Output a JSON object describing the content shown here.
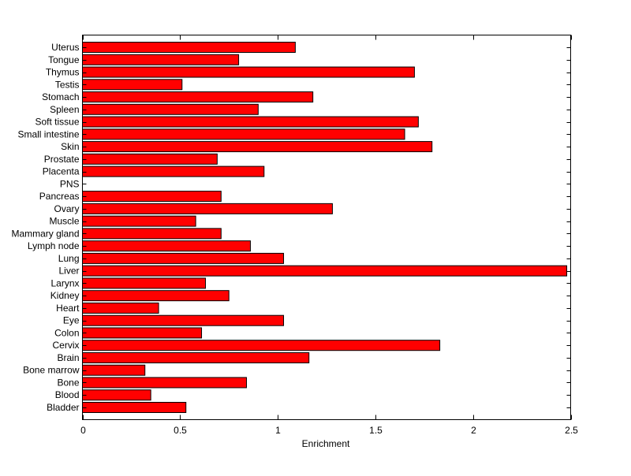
{
  "chart_data": {
    "type": "bar",
    "orientation": "horizontal",
    "title": "",
    "xlabel": "Enrichment",
    "ylabel": "",
    "xlim": [
      0,
      2.5
    ],
    "xticks": [
      0,
      0.5,
      1,
      1.5,
      2,
      2.5
    ],
    "xtick_labels": [
      "0",
      "0.5",
      "1",
      "1.5",
      "2",
      "2.5"
    ],
    "bar_color": "#ff0000",
    "categories": [
      "Bladder",
      "Blood",
      "Bone",
      "Bone marrow",
      "Brain",
      "Cervix",
      "Colon",
      "Eye",
      "Heart",
      "Kidney",
      "Larynx",
      "Liver",
      "Lung",
      "Lymph node",
      "Mammary gland",
      "Muscle",
      "Ovary",
      "Pancreas",
      "PNS",
      "Placenta",
      "Prostate",
      "Skin",
      "Small intestine",
      "Soft tissue",
      "Spleen",
      "Stomach",
      "Testis",
      "Thymus",
      "Tongue",
      "Uterus"
    ],
    "values": [
      0.53,
      0.35,
      0.84,
      0.32,
      1.16,
      1.83,
      0.61,
      1.03,
      0.39,
      0.75,
      0.63,
      2.48,
      1.03,
      0.86,
      0.71,
      0.58,
      1.28,
      0.71,
      0,
      0.93,
      0.69,
      1.79,
      1.65,
      1.72,
      0.9,
      1.18,
      0.51,
      1.7,
      0.8,
      1.09
    ]
  }
}
